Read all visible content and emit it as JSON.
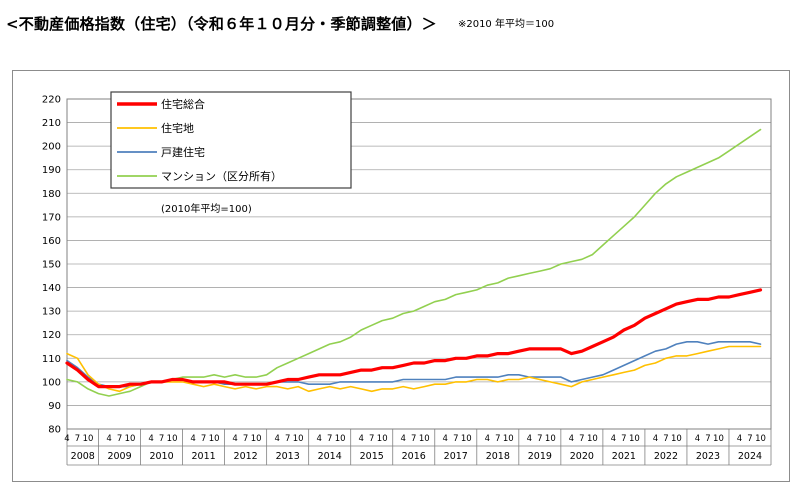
{
  "heading": {
    "title": "<不動産価格指数（住宅）（令和６年１０月分・季節調整値）＞",
    "note": "※2010 年平均＝100"
  },
  "chart_data": {
    "type": "line",
    "ylim": [
      80,
      220
    ],
    "yticks": [
      80,
      90,
      100,
      110,
      120,
      130,
      140,
      150,
      160,
      170,
      180,
      190,
      200,
      210,
      220
    ],
    "years": [
      "2008",
      "2009",
      "2010",
      "2011",
      "2012",
      "2013",
      "2014",
      "2015",
      "2016",
      "2017",
      "2018",
      "2019",
      "2020",
      "2021",
      "2022",
      "2023",
      "2024"
    ],
    "month_tick_labels": [
      "4",
      "7",
      "10"
    ],
    "grid": true,
    "legend_position": "top-left",
    "annotation": "(2010年平均=100)",
    "x_note": "monthly values; x given as year + (month-1)/12, Apr 2008 to Oct 2024",
    "series": [
      {
        "name": "住宅総合",
        "color": "#ff0000",
        "line_width": "thick",
        "points": [
          [
            2008.25,
            108
          ],
          [
            2008.5,
            105
          ],
          [
            2008.75,
            101
          ],
          [
            2009.0,
            98
          ],
          [
            2009.25,
            98
          ],
          [
            2009.5,
            98
          ],
          [
            2009.75,
            99
          ],
          [
            2010.0,
            99
          ],
          [
            2010.25,
            100
          ],
          [
            2010.5,
            100
          ],
          [
            2010.75,
            101
          ],
          [
            2011.0,
            101
          ],
          [
            2011.25,
            100
          ],
          [
            2011.5,
            100
          ],
          [
            2011.75,
            100
          ],
          [
            2012.0,
            100
          ],
          [
            2012.25,
            99
          ],
          [
            2012.5,
            99
          ],
          [
            2012.75,
            99
          ],
          [
            2013.0,
            99
          ],
          [
            2013.25,
            100
          ],
          [
            2013.5,
            101
          ],
          [
            2013.75,
            101
          ],
          [
            2014.0,
            102
          ],
          [
            2014.25,
            103
          ],
          [
            2014.5,
            103
          ],
          [
            2014.75,
            103
          ],
          [
            2015.0,
            104
          ],
          [
            2015.25,
            105
          ],
          [
            2015.5,
            105
          ],
          [
            2015.75,
            106
          ],
          [
            2016.0,
            106
          ],
          [
            2016.25,
            107
          ],
          [
            2016.5,
            108
          ],
          [
            2016.75,
            108
          ],
          [
            2017.0,
            109
          ],
          [
            2017.25,
            109
          ],
          [
            2017.5,
            110
          ],
          [
            2017.75,
            110
          ],
          [
            2018.0,
            111
          ],
          [
            2018.25,
            111
          ],
          [
            2018.5,
            112
          ],
          [
            2018.75,
            112
          ],
          [
            2019.0,
            113
          ],
          [
            2019.25,
            114
          ],
          [
            2019.5,
            114
          ],
          [
            2019.75,
            114
          ],
          [
            2020.0,
            114
          ],
          [
            2020.25,
            112
          ],
          [
            2020.5,
            113
          ],
          [
            2020.75,
            115
          ],
          [
            2021.0,
            117
          ],
          [
            2021.25,
            119
          ],
          [
            2021.5,
            122
          ],
          [
            2021.75,
            124
          ],
          [
            2022.0,
            127
          ],
          [
            2022.25,
            129
          ],
          [
            2022.5,
            131
          ],
          [
            2022.75,
            133
          ],
          [
            2023.0,
            134
          ],
          [
            2023.25,
            135
          ],
          [
            2023.5,
            135
          ],
          [
            2023.75,
            136
          ],
          [
            2024.0,
            136
          ],
          [
            2024.25,
            137
          ],
          [
            2024.5,
            138
          ],
          [
            2024.75,
            139
          ]
        ]
      },
      {
        "name": "住宅地",
        "color": "#ffc000",
        "line_width": "thin",
        "points": [
          [
            2008.25,
            112
          ],
          [
            2008.5,
            110
          ],
          [
            2008.75,
            103
          ],
          [
            2009.0,
            99
          ],
          [
            2009.25,
            97
          ],
          [
            2009.5,
            96
          ],
          [
            2009.75,
            98
          ],
          [
            2010.0,
            99
          ],
          [
            2010.25,
            100
          ],
          [
            2010.5,
            100
          ],
          [
            2010.75,
            100
          ],
          [
            2011.0,
            100
          ],
          [
            2011.25,
            99
          ],
          [
            2011.5,
            98
          ],
          [
            2011.75,
            99
          ],
          [
            2012.0,
            98
          ],
          [
            2012.25,
            97
          ],
          [
            2012.5,
            98
          ],
          [
            2012.75,
            97
          ],
          [
            2013.0,
            98
          ],
          [
            2013.25,
            98
          ],
          [
            2013.5,
            97
          ],
          [
            2013.75,
            98
          ],
          [
            2014.0,
            96
          ],
          [
            2014.25,
            97
          ],
          [
            2014.5,
            98
          ],
          [
            2014.75,
            97
          ],
          [
            2015.0,
            98
          ],
          [
            2015.25,
            97
          ],
          [
            2015.5,
            96
          ],
          [
            2015.75,
            97
          ],
          [
            2016.0,
            97
          ],
          [
            2016.25,
            98
          ],
          [
            2016.5,
            97
          ],
          [
            2016.75,
            98
          ],
          [
            2017.0,
            99
          ],
          [
            2017.25,
            99
          ],
          [
            2017.5,
            100
          ],
          [
            2017.75,
            100
          ],
          [
            2018.0,
            101
          ],
          [
            2018.25,
            101
          ],
          [
            2018.5,
            100
          ],
          [
            2018.75,
            101
          ],
          [
            2019.0,
            101
          ],
          [
            2019.25,
            102
          ],
          [
            2019.5,
            101
          ],
          [
            2019.75,
            100
          ],
          [
            2020.0,
            99
          ],
          [
            2020.25,
            98
          ],
          [
            2020.5,
            100
          ],
          [
            2020.75,
            101
          ],
          [
            2021.0,
            102
          ],
          [
            2021.25,
            103
          ],
          [
            2021.5,
            104
          ],
          [
            2021.75,
            105
          ],
          [
            2022.0,
            107
          ],
          [
            2022.25,
            108
          ],
          [
            2022.5,
            110
          ],
          [
            2022.75,
            111
          ],
          [
            2023.0,
            111
          ],
          [
            2023.25,
            112
          ],
          [
            2023.5,
            113
          ],
          [
            2023.75,
            114
          ],
          [
            2024.0,
            115
          ],
          [
            2024.25,
            115
          ],
          [
            2024.5,
            115
          ],
          [
            2024.75,
            115
          ]
        ]
      },
      {
        "name": "戸建住宅",
        "color": "#4f81bd",
        "line_width": "thin",
        "points": [
          [
            2008.25,
            109
          ],
          [
            2008.5,
            106
          ],
          [
            2008.75,
            102
          ],
          [
            2009.0,
            99
          ],
          [
            2009.25,
            98
          ],
          [
            2009.5,
            98
          ],
          [
            2009.75,
            98
          ],
          [
            2010.0,
            99
          ],
          [
            2010.25,
            100
          ],
          [
            2010.5,
            100
          ],
          [
            2010.75,
            101
          ],
          [
            2011.0,
            101
          ],
          [
            2011.25,
            100
          ],
          [
            2011.5,
            100
          ],
          [
            2011.75,
            100
          ],
          [
            2012.0,
            99
          ],
          [
            2012.25,
            99
          ],
          [
            2012.5,
            99
          ],
          [
            2012.75,
            99
          ],
          [
            2013.0,
            99
          ],
          [
            2013.25,
            100
          ],
          [
            2013.5,
            100
          ],
          [
            2013.75,
            100
          ],
          [
            2014.0,
            99
          ],
          [
            2014.25,
            99
          ],
          [
            2014.5,
            99
          ],
          [
            2014.75,
            100
          ],
          [
            2015.0,
            100
          ],
          [
            2015.25,
            100
          ],
          [
            2015.5,
            100
          ],
          [
            2015.75,
            100
          ],
          [
            2016.0,
            100
          ],
          [
            2016.25,
            101
          ],
          [
            2016.5,
            101
          ],
          [
            2016.75,
            101
          ],
          [
            2017.0,
            101
          ],
          [
            2017.25,
            101
          ],
          [
            2017.5,
            102
          ],
          [
            2017.75,
            102
          ],
          [
            2018.0,
            102
          ],
          [
            2018.25,
            102
          ],
          [
            2018.5,
            102
          ],
          [
            2018.75,
            103
          ],
          [
            2019.0,
            103
          ],
          [
            2019.25,
            102
          ],
          [
            2019.5,
            102
          ],
          [
            2019.75,
            102
          ],
          [
            2020.0,
            102
          ],
          [
            2020.25,
            100
          ],
          [
            2020.5,
            101
          ],
          [
            2020.75,
            102
          ],
          [
            2021.0,
            103
          ],
          [
            2021.25,
            105
          ],
          [
            2021.5,
            107
          ],
          [
            2021.75,
            109
          ],
          [
            2022.0,
            111
          ],
          [
            2022.25,
            113
          ],
          [
            2022.5,
            114
          ],
          [
            2022.75,
            116
          ],
          [
            2023.0,
            117
          ],
          [
            2023.25,
            117
          ],
          [
            2023.5,
            116
          ],
          [
            2023.75,
            117
          ],
          [
            2024.0,
            117
          ],
          [
            2024.25,
            117
          ],
          [
            2024.5,
            117
          ],
          [
            2024.75,
            116
          ]
        ]
      },
      {
        "name": "マンション（区分所有）",
        "color": "#92d050",
        "line_width": "thin",
        "points": [
          [
            2008.25,
            101
          ],
          [
            2008.5,
            100
          ],
          [
            2008.75,
            97
          ],
          [
            2009.0,
            95
          ],
          [
            2009.25,
            94
          ],
          [
            2009.5,
            95
          ],
          [
            2009.75,
            96
          ],
          [
            2010.0,
            98
          ],
          [
            2010.25,
            100
          ],
          [
            2010.5,
            100
          ],
          [
            2010.75,
            101
          ],
          [
            2011.0,
            102
          ],
          [
            2011.25,
            102
          ],
          [
            2011.5,
            102
          ],
          [
            2011.75,
            103
          ],
          [
            2012.0,
            102
          ],
          [
            2012.25,
            103
          ],
          [
            2012.5,
            102
          ],
          [
            2012.75,
            102
          ],
          [
            2013.0,
            103
          ],
          [
            2013.25,
            106
          ],
          [
            2013.5,
            108
          ],
          [
            2013.75,
            110
          ],
          [
            2014.0,
            112
          ],
          [
            2014.25,
            114
          ],
          [
            2014.5,
            116
          ],
          [
            2014.75,
            117
          ],
          [
            2015.0,
            119
          ],
          [
            2015.25,
            122
          ],
          [
            2015.5,
            124
          ],
          [
            2015.75,
            126
          ],
          [
            2016.0,
            127
          ],
          [
            2016.25,
            129
          ],
          [
            2016.5,
            130
          ],
          [
            2016.75,
            132
          ],
          [
            2017.0,
            134
          ],
          [
            2017.25,
            135
          ],
          [
            2017.5,
            137
          ],
          [
            2017.75,
            138
          ],
          [
            2018.0,
            139
          ],
          [
            2018.25,
            141
          ],
          [
            2018.5,
            142
          ],
          [
            2018.75,
            144
          ],
          [
            2019.0,
            145
          ],
          [
            2019.25,
            146
          ],
          [
            2019.5,
            147
          ],
          [
            2019.75,
            148
          ],
          [
            2020.0,
            150
          ],
          [
            2020.25,
            151
          ],
          [
            2020.5,
            152
          ],
          [
            2020.75,
            154
          ],
          [
            2021.0,
            158
          ],
          [
            2021.25,
            162
          ],
          [
            2021.5,
            166
          ],
          [
            2021.75,
            170
          ],
          [
            2022.0,
            175
          ],
          [
            2022.25,
            180
          ],
          [
            2022.5,
            184
          ],
          [
            2022.75,
            187
          ],
          [
            2023.0,
            189
          ],
          [
            2023.25,
            191
          ],
          [
            2023.5,
            193
          ],
          [
            2023.75,
            195
          ],
          [
            2024.0,
            198
          ],
          [
            2024.25,
            201
          ],
          [
            2024.5,
            204
          ],
          [
            2024.75,
            207
          ]
        ]
      }
    ]
  }
}
